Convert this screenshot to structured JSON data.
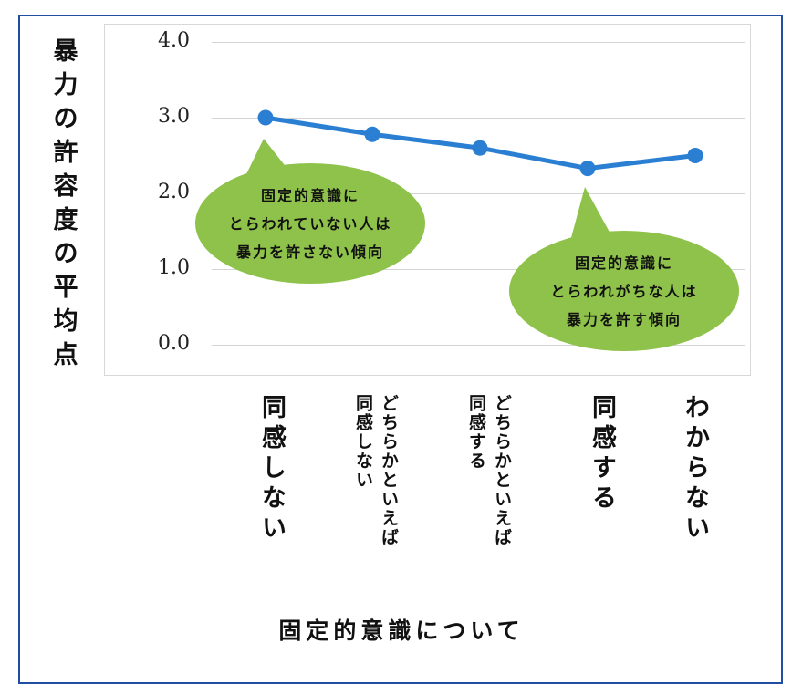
{
  "chart_data": {
    "type": "line",
    "ylabel": "暴力の許容度の平均点",
    "xlabel": "固定的意識について",
    "categories": [
      "同感しない",
      "どちらかといえば同感しない",
      "どちらかといえば同感する",
      "同感する",
      "わからない"
    ],
    "category_display": [
      {
        "lines": [
          "同感しない"
        ],
        "style": "big"
      },
      {
        "lines": [
          "どちらかといえば",
          "同感しない"
        ],
        "style": "small"
      },
      {
        "lines": [
          "どちらかといえば",
          "同感する"
        ],
        "style": "small"
      },
      {
        "lines": [
          "同感する"
        ],
        "style": "big"
      },
      {
        "lines": [
          "わからない"
        ],
        "style": "big"
      }
    ],
    "values": [
      3.0,
      2.78,
      2.6,
      2.33,
      2.5
    ],
    "ylim": [
      0.0,
      4.0
    ],
    "yticks": [
      "4.0",
      "3.0",
      "2.0",
      "1.0",
      "0.0"
    ],
    "grid": true,
    "line_color": "#2b7fd3",
    "annotations": [
      {
        "lines": [
          "固定的意識に",
          "とらわれていない人は",
          "暴力を許さない傾向"
        ],
        "color": "#8fc24a",
        "points_to": "同感しない"
      },
      {
        "lines": [
          "固定的意識に",
          "とらわれがちな人は",
          "暴力を許す傾向"
        ],
        "color": "#8fc24a",
        "points_to": "同感する"
      }
    ]
  }
}
